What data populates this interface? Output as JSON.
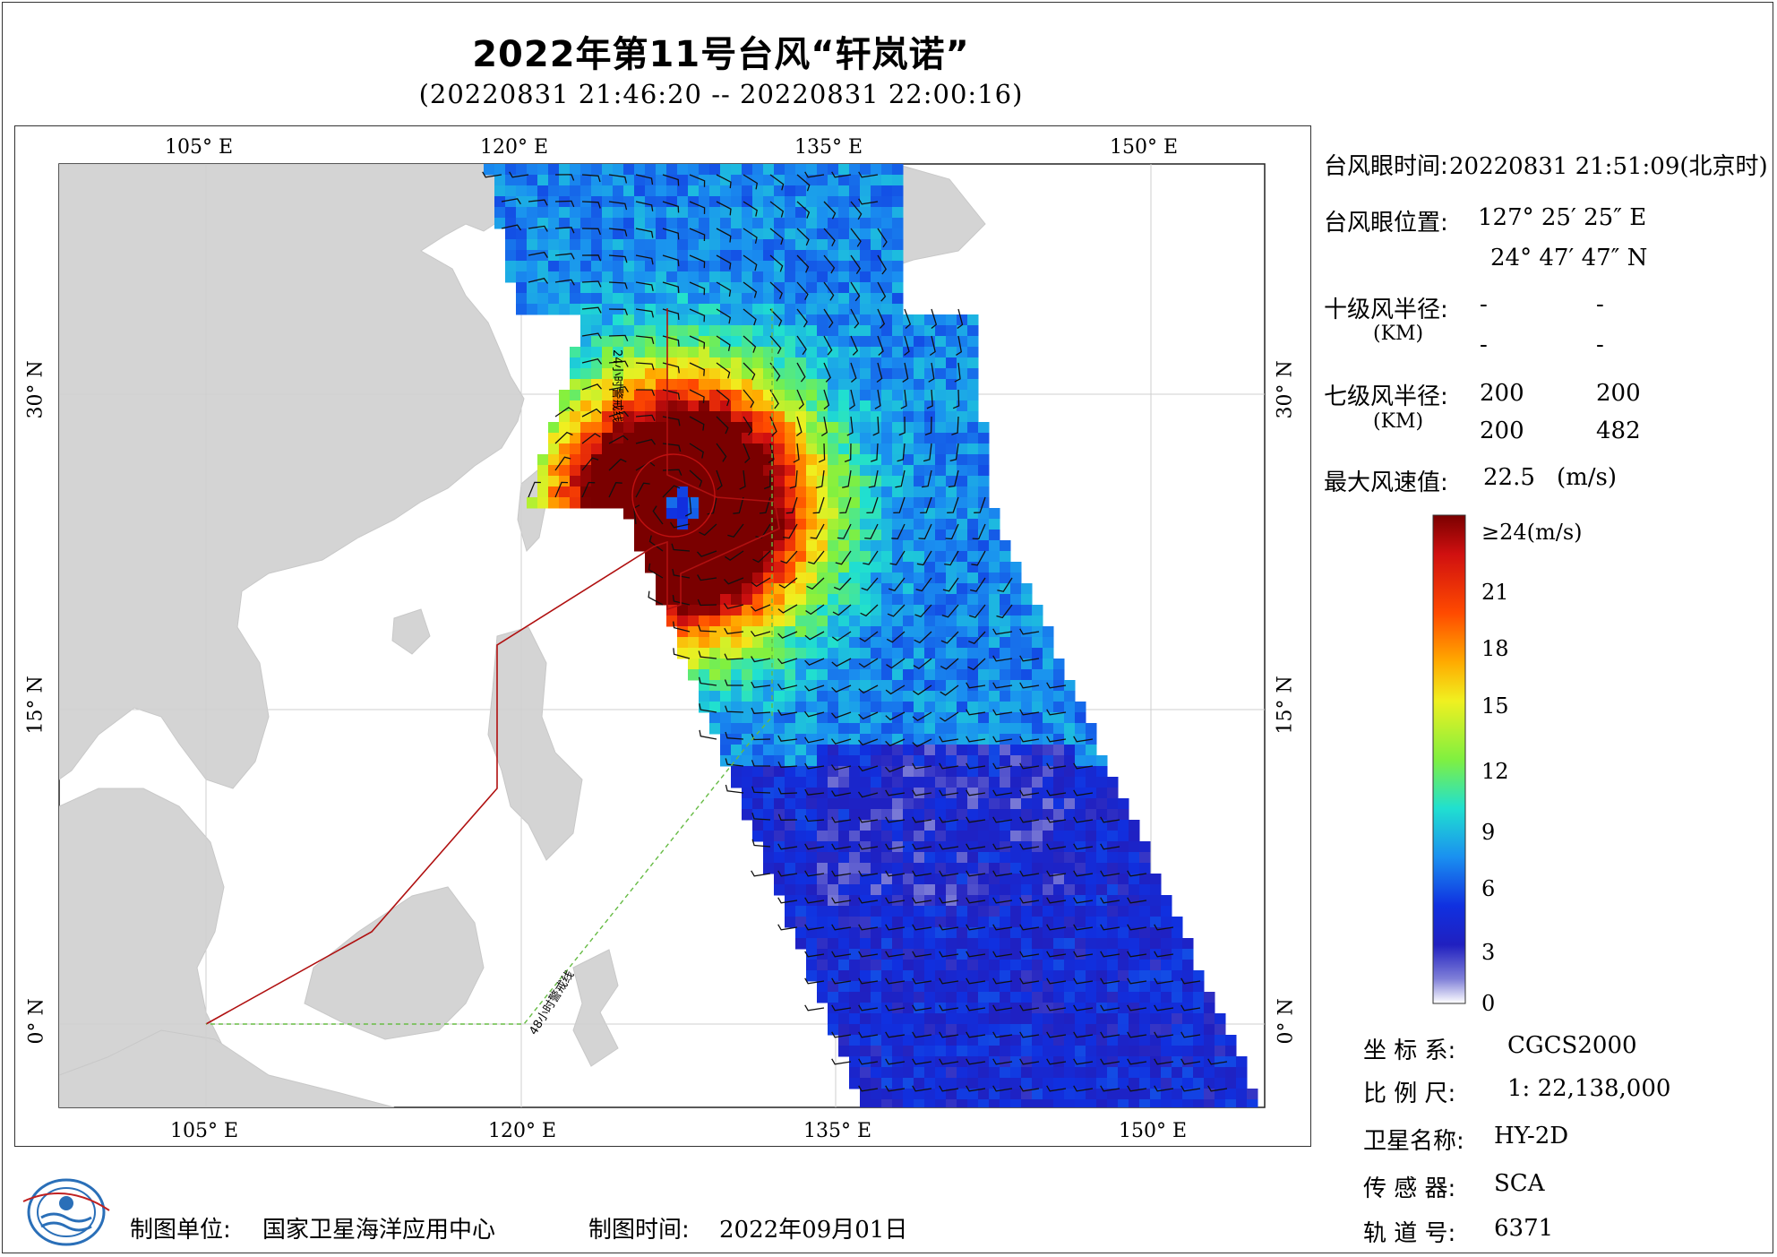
{
  "title": "2022年第11号台风“轩岚诺”",
  "subtitle": "(20220831 21:46:20 -- 20220831 22:00:16)",
  "axis": {
    "lon_labels": [
      "105° E",
      "120° E",
      "135° E",
      "150° E"
    ],
    "lat_labels": [
      "30° N",
      "15° N",
      "0° N"
    ]
  },
  "map_annotations": {
    "warning_24h": "24小时警戒线",
    "warning_48h": "48小时警戒线"
  },
  "eye": {
    "time_label": "台风眼时间:",
    "time_value": "20220831 21:51:09(北京时)",
    "pos_label": "台风眼位置:",
    "lon": "127° 25′ 25″ E",
    "lat": "24° 47′ 47″ N"
  },
  "radius10": {
    "label": "十级风半径:",
    "unit": "(KM)",
    "values": [
      "-",
      "-",
      "-",
      "-"
    ]
  },
  "radius7": {
    "label": "七级风半径:",
    "unit": "(KM)",
    "values": [
      "200",
      "200",
      "200",
      "482"
    ]
  },
  "max_wind": {
    "label": "最大风速值:",
    "value": "22.5",
    "unit": "(m/s)"
  },
  "colorbar": {
    "labels": [
      "≥24(m/s)",
      "21",
      "18",
      "15",
      "12",
      "9",
      "6",
      "3",
      "0"
    ],
    "colors": [
      "#7a0000",
      "#d01010",
      "#ff4a00",
      "#ffaa00",
      "#f0f020",
      "#80f040",
      "#20e0d0",
      "#1a90f0",
      "#1030e0",
      "#2020c0",
      "#8080d8",
      "#ffffff"
    ]
  },
  "meta": {
    "crs_label": "坐 标 系:",
    "crs_value": "CGCS2000",
    "scale_label": "比 例 尺:",
    "scale_value": "1: 22,138,000",
    "sat_label": "卫星名称:",
    "sat_value": "HY-2D",
    "sensor_label": "传 感 器:",
    "sensor_value": "SCA",
    "orbit_label": "轨 道 号:",
    "orbit_value": "6371"
  },
  "footer": {
    "unit_label": "制图单位:",
    "unit_value": "国家卫星海洋应用中心",
    "time_label": "制图时间:",
    "time_value": "2022年09月01日"
  },
  "swath": {
    "max_speed": 24,
    "eye_lon": 127.42,
    "eye_lat": 24.8
  }
}
